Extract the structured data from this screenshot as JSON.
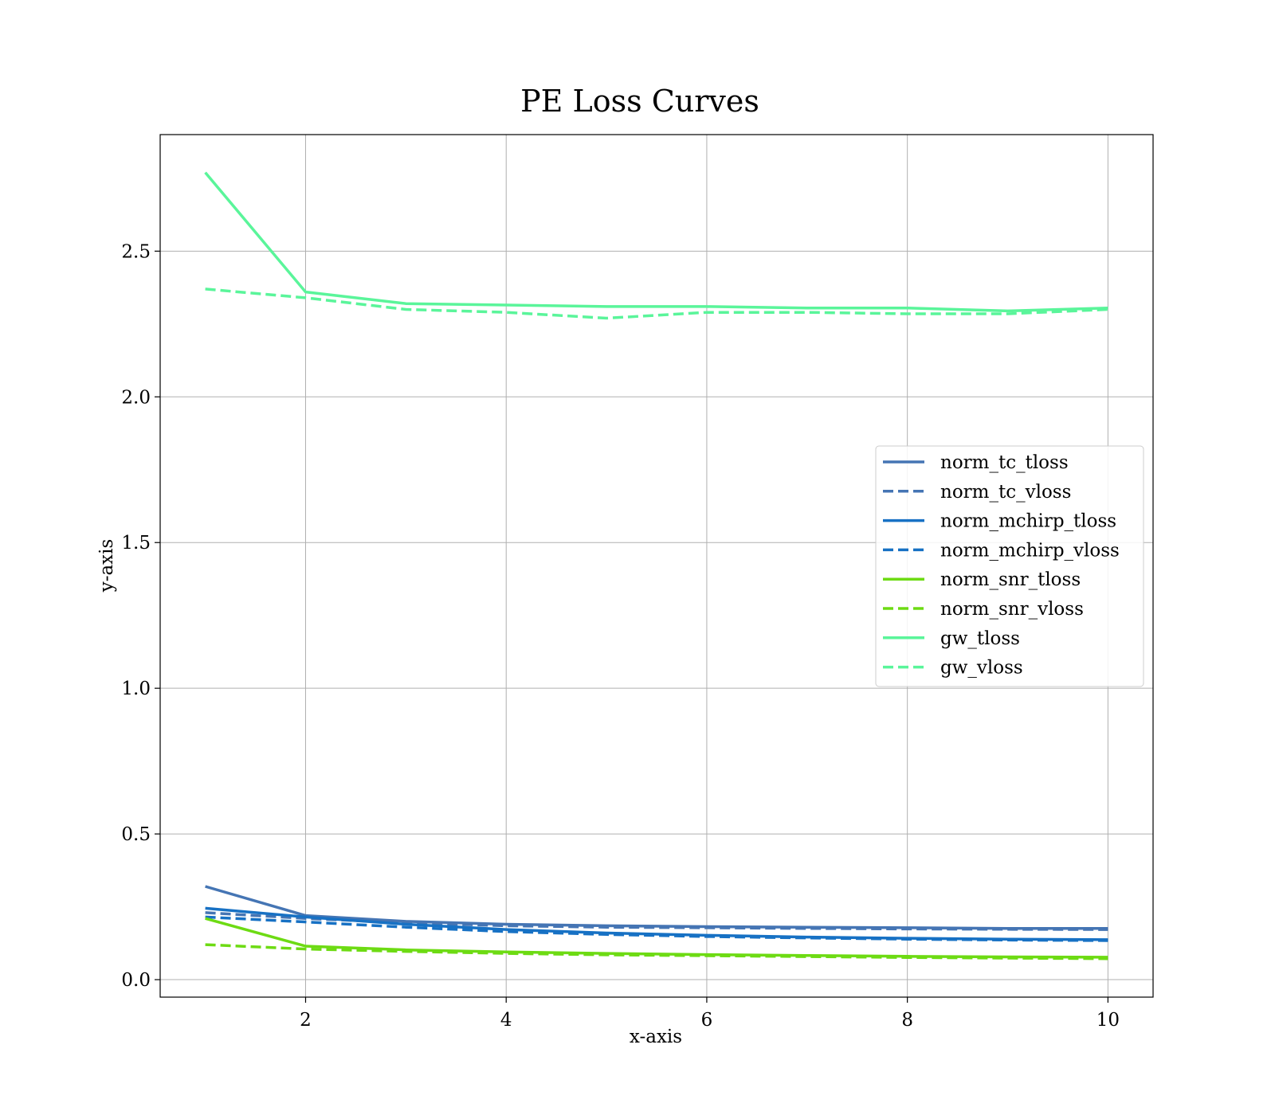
{
  "chart_data": {
    "type": "line",
    "title": "PE Loss Curves",
    "xlabel": "x-axis",
    "ylabel": "y-axis",
    "xlim": [
      0.55,
      10.45
    ],
    "ylim": [
      -0.06,
      2.9
    ],
    "xticks": [
      2,
      4,
      6,
      8,
      10
    ],
    "xtick_labels": [
      "2",
      "4",
      "6",
      "8",
      "10"
    ],
    "yticks": [
      0.0,
      0.5,
      1.0,
      1.5,
      2.0,
      2.5
    ],
    "ytick_labels": [
      "0.0",
      "0.5",
      "1.0",
      "1.5",
      "2.0",
      "2.5"
    ],
    "grid": true,
    "legend_position": "center-right",
    "x": [
      1,
      2,
      3,
      4,
      5,
      6,
      7,
      8,
      9,
      10
    ],
    "series": [
      {
        "name": "norm_tc_tloss",
        "color": "#4575b4",
        "dash": "solid",
        "values": [
          0.32,
          0.22,
          0.2,
          0.19,
          0.185,
          0.182,
          0.18,
          0.178,
          0.176,
          0.176
        ]
      },
      {
        "name": "norm_tc_vloss",
        "color": "#4575b4",
        "dash": "dashed",
        "values": [
          0.23,
          0.21,
          0.195,
          0.185,
          0.18,
          0.178,
          0.176,
          0.174,
          0.173,
          0.172
        ]
      },
      {
        "name": "norm_mchirp_tloss",
        "color": "#1771c4",
        "dash": "solid",
        "values": [
          0.245,
          0.215,
          0.19,
          0.172,
          0.16,
          0.152,
          0.146,
          0.142,
          0.139,
          0.137
        ]
      },
      {
        "name": "norm_mchirp_vloss",
        "color": "#1771c4",
        "dash": "dashed",
        "values": [
          0.215,
          0.198,
          0.18,
          0.165,
          0.155,
          0.148,
          0.143,
          0.139,
          0.136,
          0.134
        ]
      },
      {
        "name": "norm_snr_tloss",
        "color": "#6ddb13",
        "dash": "solid",
        "values": [
          0.21,
          0.115,
          0.102,
          0.095,
          0.09,
          0.086,
          0.083,
          0.08,
          0.078,
          0.077
        ]
      },
      {
        "name": "norm_snr_vloss",
        "color": "#6ddb13",
        "dash": "dashed",
        "values": [
          0.12,
          0.105,
          0.097,
          0.09,
          0.085,
          0.082,
          0.079,
          0.076,
          0.074,
          0.072
        ]
      },
      {
        "name": "gw_tloss",
        "color": "#5af59a",
        "dash": "solid",
        "values": [
          2.77,
          2.36,
          2.32,
          2.315,
          2.31,
          2.31,
          2.305,
          2.305,
          2.295,
          2.305
        ]
      },
      {
        "name": "gw_vloss",
        "color": "#5af59a",
        "dash": "dashed",
        "values": [
          2.37,
          2.34,
          2.3,
          2.29,
          2.27,
          2.29,
          2.29,
          2.285,
          2.285,
          2.3
        ]
      }
    ]
  }
}
